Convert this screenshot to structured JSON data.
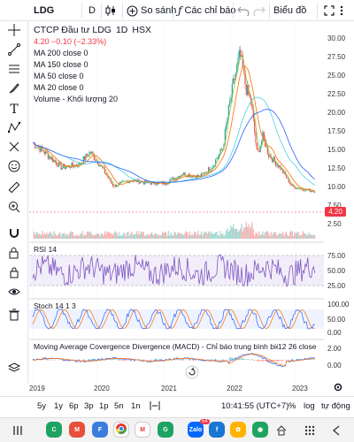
{
  "toolbar": {
    "symbol": "LDG",
    "interval": "D",
    "compare_label": "So sánh",
    "indicators_label": "Các chỉ báo",
    "chart_type_label": "Biểu đồ"
  },
  "legend": {
    "title": "CTCP Đầu tư LDG",
    "interval": "1D",
    "exchange": "HSX",
    "price": "4.20",
    "change": "−0.10 (−2.33%)",
    "ma": [
      "MA 200 close 0",
      "MA 150 close 0",
      "MA 50 close 0",
      "MA 20 close 0"
    ],
    "volume": "Volume - Khối lượng 20"
  },
  "panes": {
    "rsi_title": "RSI 14",
    "stoch_title": "Stoch 14 1 3",
    "macd_title": "Moving Average Covergence Divergence (MACD) - Chỉ báo trung bình biến đổi p...",
    "macd_params": "12 26 close"
  },
  "price_axis": [
    "30.00",
    "27.50",
    "25.00",
    "22.50",
    "20.00",
    "17.50",
    "15.00",
    "12.50",
    "10.00",
    "7.50",
    "5.00",
    "2.50"
  ],
  "current_price_badge": "4.20",
  "rsi_axis": [
    "75.00",
    "50.00",
    "25.00"
  ],
  "stoch_axis": [
    "100.00",
    "50.00",
    "0.00"
  ],
  "macd_axis": [
    "2.00",
    "0.00"
  ],
  "x_axis": [
    "2019",
    "2020",
    "2021",
    "2022",
    "2023"
  ],
  "ranges": [
    "5y",
    "1y",
    "6p",
    "3p",
    "1p",
    "5n",
    "1n"
  ],
  "time": "10:41:55 (UTC+7)",
  "pct_label": "%",
  "log_label": "log",
  "auto_label": "tự động",
  "zalo_badge": "54",
  "colors": {
    "up": "#26a69a",
    "down": "#ef5350",
    "ma200": "#2962ff",
    "ma150": "#4dd0e1",
    "ma50": "#ff6d00",
    "ma20": "#8bc34a",
    "rsi": "#7e57c2",
    "stochK": "#2962ff",
    "stochD": "#ff6d00"
  },
  "chart_data": [
    {
      "type": "line",
      "x_range": [
        "2019-01",
        "2023-02"
      ],
      "y_axis_ticks": [
        2.5,
        5,
        7.5,
        10,
        12.5,
        15,
        17.5,
        20,
        22.5,
        25,
        27.5,
        30
      ],
      "ylim": [
        0,
        30
      ],
      "series": [
        {
          "name": "LDG",
          "x": [
            "2019-01",
            "2019-03",
            "2019-06",
            "2019-09",
            "2019-11",
            "2020-01",
            "2020-03",
            "2020-06",
            "2020-09",
            "2020-12",
            "2021-03",
            "2021-06",
            "2021-08",
            "2021-10",
            "2021-11",
            "2021-12",
            "2022-01",
            "2022-02",
            "2022-03",
            "2022-04",
            "2022-05",
            "2022-06",
            "2022-08",
            "2022-10",
            "2022-12",
            "2023-02"
          ],
          "values": [
            12,
            10.5,
            8,
            8.5,
            10.5,
            8,
            5,
            6,
            5.5,
            5.5,
            7,
            6.5,
            8,
            11,
            17,
            22,
            26,
            21,
            18,
            10,
            13,
            10,
            8,
            5,
            4.5,
            4.2
          ]
        }
      ]
    },
    {
      "type": "line",
      "title": "RSI 14",
      "y_axis_ticks": [
        25,
        50,
        75
      ],
      "ylim": [
        0,
        100
      ]
    },
    {
      "type": "line",
      "title": "Stoch 14 1 3",
      "y_axis_ticks": [
        0,
        50,
        100
      ],
      "ylim": [
        0,
        100
      ]
    },
    {
      "type": "bar",
      "y_axis_ticks": [
        0,
        2
      ]
    }
  ]
}
